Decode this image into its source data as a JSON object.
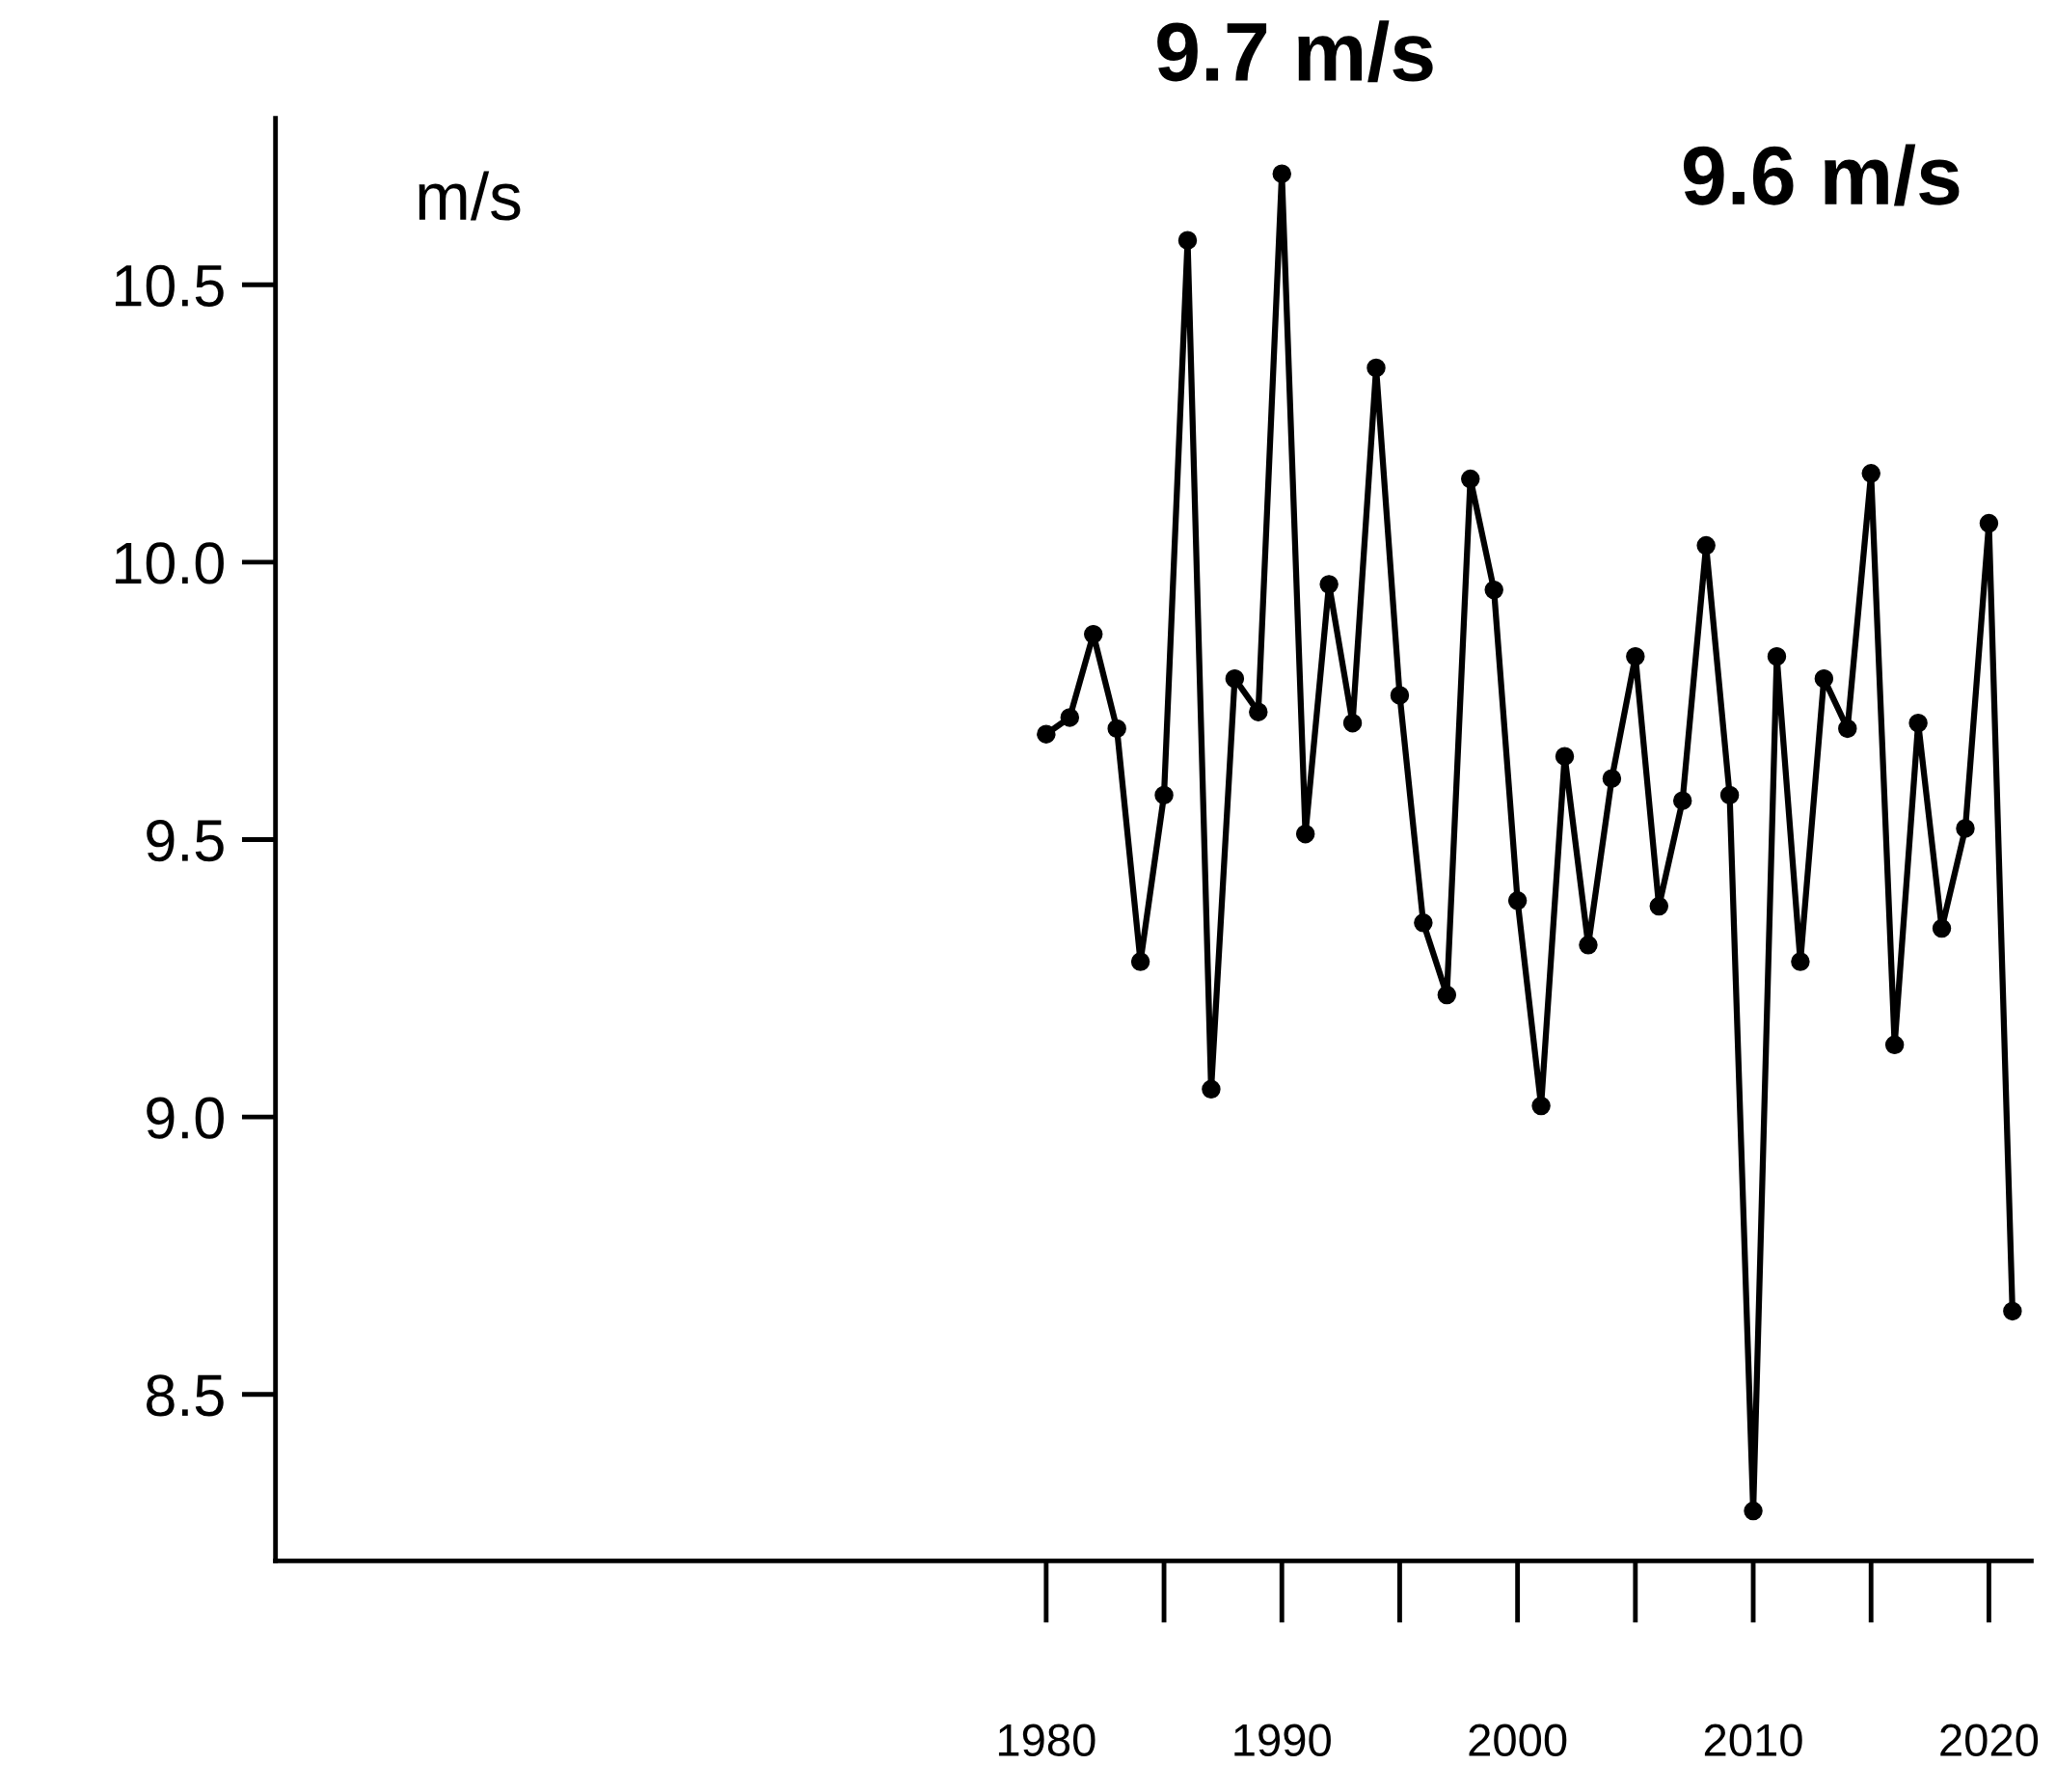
{
  "chart_data": {
    "type": "line",
    "ylabel": "m/s",
    "annotations": [
      "9.7 m/s",
      "9.6 m/s"
    ],
    "x": [
      1980,
      1981,
      1982,
      1983,
      1984,
      1985,
      1986,
      1987,
      1988,
      1989,
      1990,
      1991,
      1992,
      1993,
      1994,
      1995,
      1996,
      1997,
      1998,
      1999,
      2000,
      2001,
      2002,
      2003,
      2004,
      2005,
      2006,
      2007,
      2008,
      2009,
      2010,
      2011,
      2012,
      2013,
      2014,
      2015,
      2016,
      2017,
      2018,
      2019,
      2020,
      2021
    ],
    "series": [
      {
        "color": "#000000",
        "values": [
          9.69,
          9.72,
          9.87,
          9.7,
          9.28,
          9.58,
          10.58,
          9.05,
          9.79,
          9.73,
          10.7,
          9.51,
          9.96,
          9.71,
          10.35,
          9.76,
          9.35,
          9.22,
          10.15,
          9.95,
          9.39,
          9.02,
          9.65,
          9.31,
          9.61,
          9.83,
          9.38,
          9.57,
          10.03,
          9.58,
          8.29,
          9.83,
          9.28,
          9.79,
          9.7,
          10.16,
          9.13,
          9.71,
          9.34,
          9.52,
          10.07,
          8.65
        ]
      }
    ],
    "marker": "circle",
    "line_style": "solid",
    "grid": false,
    "legend": false,
    "xlim": [
      1947.3,
      2021.8
    ],
    "ylim": [
      8.2,
      10.8
    ],
    "xticks": [
      1980,
      1990,
      2000,
      2010,
      2020
    ],
    "yticks": [
      {
        "value": 8.5,
        "label": "8.5"
      },
      {
        "value": 9,
        "label": "9.0"
      },
      {
        "value": 9.5,
        "label": "9.5"
      },
      {
        "value": 10,
        "label": "10.0"
      },
      {
        "value": 10.5,
        "label": "10.5"
      }
    ]
  }
}
